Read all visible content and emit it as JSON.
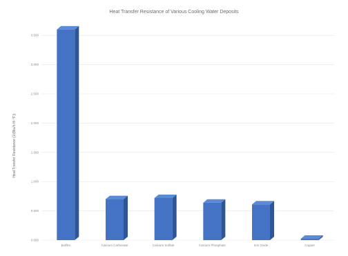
{
  "chart_data": {
    "type": "bar",
    "style": "3d-column",
    "title": "Heat Transfer Resistance of Various Cooling Water Deposits",
    "xlabel": "",
    "ylabel": "Heat Transfer Resistance (1/(Btu/h·ft²·°F))",
    "categories": [
      "Biofilm",
      "Calcium Carbonate",
      "Calcium Sulfate",
      "Calcium Phosphate",
      "Iron Oxide",
      "Copper"
    ],
    "values": [
      3.6,
      0.7,
      0.72,
      0.64,
      0.61,
      0.0
    ],
    "ylim": [
      0,
      3.75
    ],
    "yticks": [
      "0.000",
      "0.500",
      "1.000",
      "1.500",
      "2.000",
      "2.500",
      "3.000",
      "3.500",
      "4.000"
    ],
    "grid": true,
    "legend": "none",
    "bar_color": "#4472c4"
  }
}
